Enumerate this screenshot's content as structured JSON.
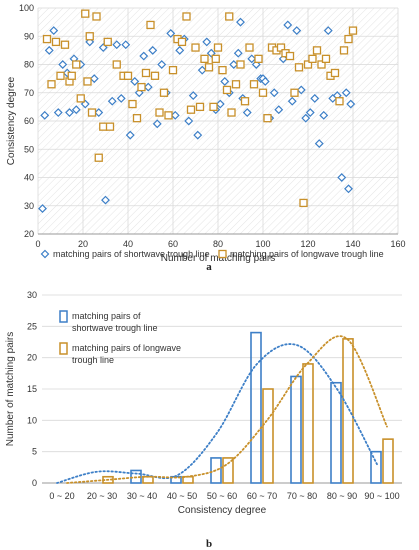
{
  "colors": {
    "blue": "#3d7fc7",
    "orange": "#c8902a",
    "grid": "#d9d9d9",
    "axis": "#999999",
    "hatch": "#e3e3e3"
  },
  "panel_labels": [
    "a",
    "b"
  ],
  "chart_data": [
    {
      "type": "scatter",
      "xlabel": "Number of matching pairs",
      "ylabel": "Consistency degree",
      "xlim": [
        0,
        160
      ],
      "ylim": [
        20,
        100
      ],
      "xticks": [
        0,
        20,
        40,
        60,
        80,
        100,
        120,
        140,
        160
      ],
      "yticks": [
        20,
        30,
        40,
        50,
        60,
        70,
        80,
        90,
        100
      ],
      "grid": true,
      "legend_position": "bottom",
      "series": [
        {
          "name": "matching pairs of shortwave trough line",
          "marker": "diamond",
          "points": [
            [
              2,
              29
            ],
            [
              3,
              62
            ],
            [
              5,
              85
            ],
            [
              7,
              92
            ],
            [
              9,
              63
            ],
            [
              11,
              80
            ],
            [
              13,
              77
            ],
            [
              14,
              63
            ],
            [
              16,
              82
            ],
            [
              17,
              64
            ],
            [
              19,
              80
            ],
            [
              21,
              66
            ],
            [
              23,
              88
            ],
            [
              25,
              75
            ],
            [
              27,
              63
            ],
            [
              29,
              86
            ],
            [
              30,
              32
            ],
            [
              31,
              88
            ],
            [
              33,
              67
            ],
            [
              35,
              87
            ],
            [
              37,
              68
            ],
            [
              39,
              87
            ],
            [
              41,
              55
            ],
            [
              43,
              74
            ],
            [
              45,
              70
            ],
            [
              47,
              83
            ],
            [
              49,
              72
            ],
            [
              51,
              85
            ],
            [
              53,
              59
            ],
            [
              55,
              80
            ],
            [
              57,
              70
            ],
            [
              59,
              91
            ],
            [
              61,
              62
            ],
            [
              63,
              85
            ],
            [
              65,
              89
            ],
            [
              67,
              60
            ],
            [
              69,
              69
            ],
            [
              71,
              55
            ],
            [
              73,
              78
            ],
            [
              75,
              88
            ],
            [
              77,
              84
            ],
            [
              79,
              64
            ],
            [
              81,
              66
            ],
            [
              83,
              74
            ],
            [
              85,
              70
            ],
            [
              87,
              80
            ],
            [
              89,
              84
            ],
            [
              90,
              95
            ],
            [
              91,
              68
            ],
            [
              93,
              63
            ],
            [
              95,
              82
            ],
            [
              97,
              80
            ],
            [
              99,
              75
            ],
            [
              100,
              75
            ],
            [
              101,
              74
            ],
            [
              103,
              61
            ],
            [
              105,
              70
            ],
            [
              107,
              64
            ],
            [
              109,
              82
            ],
            [
              111,
              94
            ],
            [
              113,
              67
            ],
            [
              115,
              92
            ],
            [
              117,
              71
            ],
            [
              119,
              61
            ],
            [
              121,
              63
            ],
            [
              123,
              68
            ],
            [
              125,
              52
            ],
            [
              127,
              62
            ],
            [
              129,
              92
            ],
            [
              131,
              68
            ],
            [
              133,
              69
            ],
            [
              135,
              40
            ],
            [
              137,
              70
            ],
            [
              138,
              36
            ],
            [
              139,
              66
            ]
          ]
        },
        {
          "name": "matching pairs of longwave trough line",
          "marker": "square",
          "points": [
            [
              4,
              89
            ],
            [
              6,
              73
            ],
            [
              8,
              88
            ],
            [
              10,
              76
            ],
            [
              12,
              87
            ],
            [
              14,
              74
            ],
            [
              15,
              76
            ],
            [
              17,
              80
            ],
            [
              19,
              68
            ],
            [
              21,
              98
            ],
            [
              22,
              74
            ],
            [
              23,
              90
            ],
            [
              24,
              63
            ],
            [
              26,
              97
            ],
            [
              27,
              47
            ],
            [
              29,
              58
            ],
            [
              31,
              88
            ],
            [
              32,
              58
            ],
            [
              35,
              80
            ],
            [
              38,
              76
            ],
            [
              40,
              76
            ],
            [
              42,
              66
            ],
            [
              44,
              61
            ],
            [
              46,
              72
            ],
            [
              48,
              77
            ],
            [
              50,
              94
            ],
            [
              52,
              76
            ],
            [
              54,
              63
            ],
            [
              56,
              70
            ],
            [
              58,
              62
            ],
            [
              60,
              78
            ],
            [
              62,
              89
            ],
            [
              64,
              88
            ],
            [
              66,
              97
            ],
            [
              68,
              64
            ],
            [
              70,
              86
            ],
            [
              72,
              65
            ],
            [
              74,
              82
            ],
            [
              76,
              79
            ],
            [
              78,
              65
            ],
            [
              79,
              82
            ],
            [
              80,
              86
            ],
            [
              82,
              78
            ],
            [
              84,
              71
            ],
            [
              85,
              97
            ],
            [
              86,
              63
            ],
            [
              88,
              73
            ],
            [
              90,
              80
            ],
            [
              92,
              67
            ],
            [
              94,
              86
            ],
            [
              96,
              73
            ],
            [
              98,
              82
            ],
            [
              100,
              70
            ],
            [
              102,
              61
            ],
            [
              104,
              86
            ],
            [
              106,
              85
            ],
            [
              108,
              86
            ],
            [
              110,
              84
            ],
            [
              112,
              83
            ],
            [
              114,
              70
            ],
            [
              116,
              79
            ],
            [
              118,
              31
            ],
            [
              120,
              80
            ],
            [
              122,
              82
            ],
            [
              124,
              85
            ],
            [
              126,
              80
            ],
            [
              128,
              82
            ],
            [
              130,
              76
            ],
            [
              132,
              77
            ],
            [
              134,
              67
            ],
            [
              136,
              85
            ],
            [
              138,
              89
            ],
            [
              140,
              92
            ]
          ]
        }
      ]
    },
    {
      "type": "bar",
      "xlabel": "Consistency degree",
      "ylabel": "Number of matching pairs",
      "categories": [
        "0 ~ 20",
        "20 ~ 30",
        "30 ~ 40",
        "40 ~ 50",
        "50 ~ 60",
        "60 ~ 70",
        "70 ~ 80",
        "80 ~ 90",
        "90 ~ 100"
      ],
      "ylim": [
        0,
        30
      ],
      "yticks": [
        0,
        5,
        10,
        15,
        20,
        25,
        30
      ],
      "grid": true,
      "legend_position": "top-left",
      "trend_lines": "dotted polynomial fit per series",
      "series": [
        {
          "name": "matching pairs of shortwave trough line",
          "values": [
            0,
            0,
            2,
            1,
            4,
            24,
            17,
            16,
            5
          ]
        },
        {
          "name": "matching pairs of longwave trough line",
          "values": [
            0,
            1,
            1,
            1,
            4,
            15,
            19,
            23,
            7
          ]
        }
      ],
      "legend_lines": [
        [
          "matching pairs of",
          "shortwave trough line"
        ],
        [
          "matching pairs of longwave",
          "trough line"
        ]
      ]
    }
  ]
}
